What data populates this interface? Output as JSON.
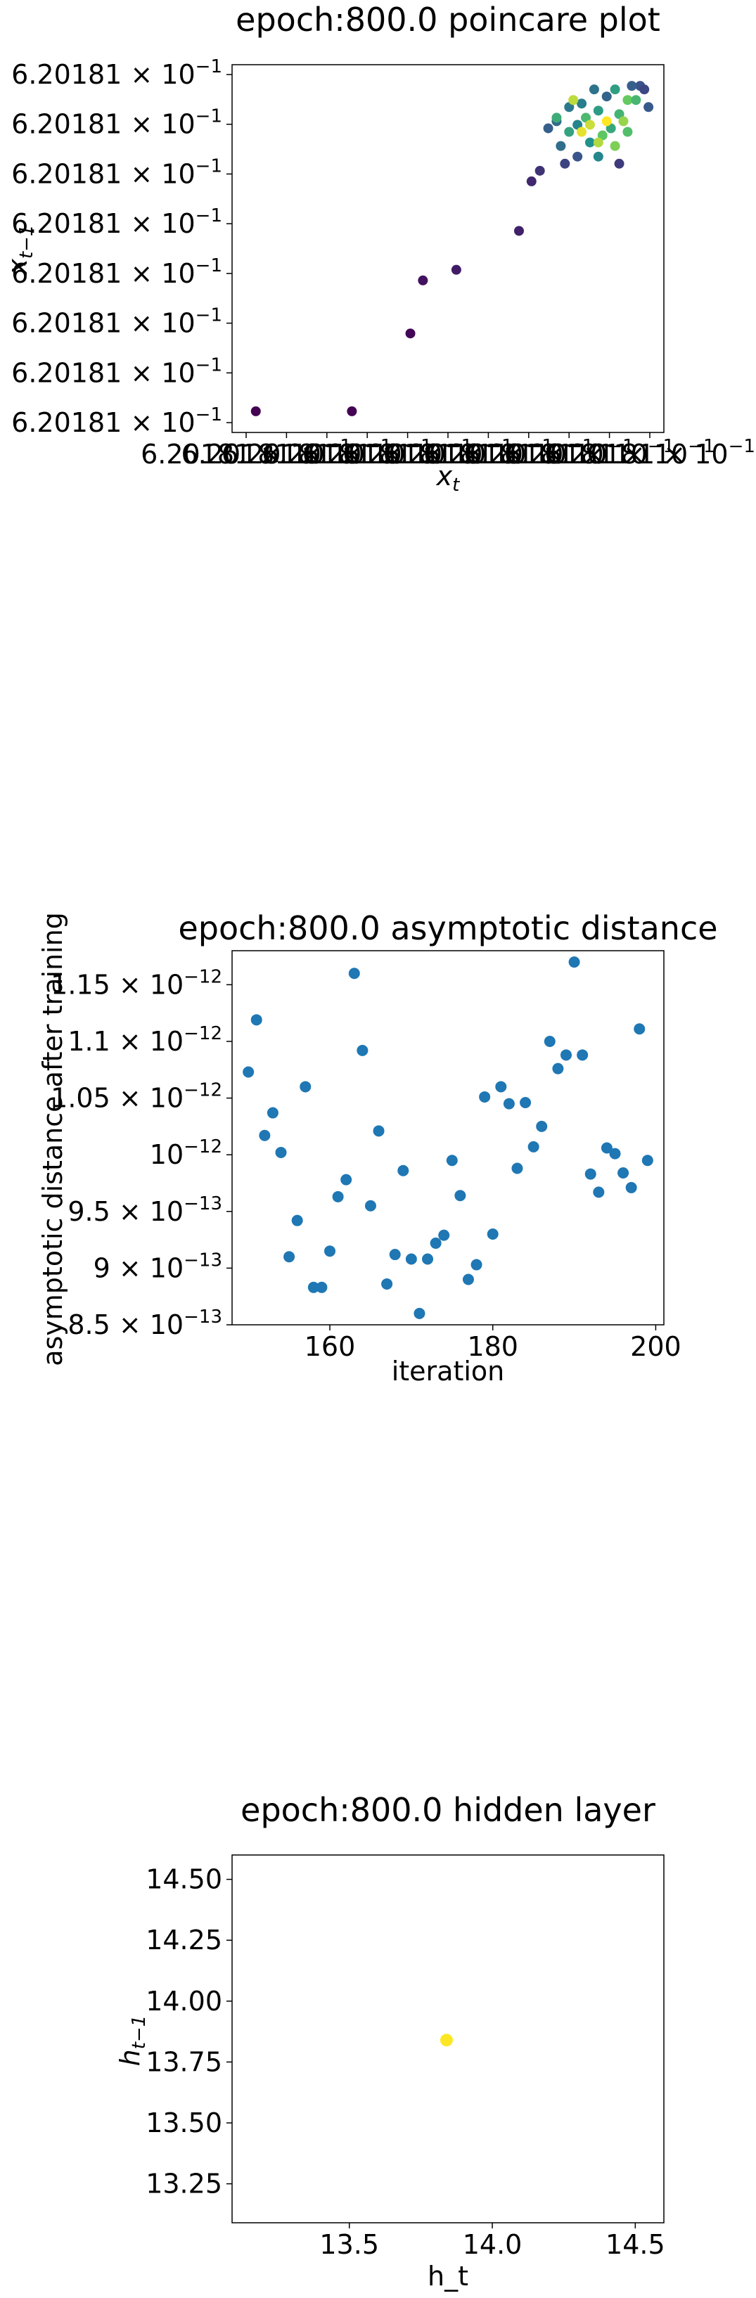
{
  "chart_data": [
    {
      "type": "scatter",
      "title": "epoch:800.0 poincare plot",
      "xlabel": "x_t",
      "ylabel": "x_{t-1}",
      "x_tick_labels": [
        "6.20181 × 10^-1",
        "6.20181 × 10^-1",
        "6.20181 × 10^-1",
        "6.20181 × 10^-1",
        "6.20181 × 10^-1",
        "6.20181 × 10^-1",
        "6.20181 × 10^-1",
        "6.20181 × 10^-1",
        "6.20181 × 10^-1",
        "6.20181 × 10^-1",
        "6.20181 × 10^-1"
      ],
      "y_tick_labels": [
        "6.20181 × 10^-1",
        "6.20181 × 10^-1",
        "6.20181 × 10^-1",
        "6.20181 × 10^-1",
        "6.20181 × 10^-1",
        "6.20181 × 10^-1",
        "6.20181 × 10^-1",
        "6.20181 × 10^-1"
      ],
      "xlim": [
        0,
        1
      ],
      "ylim": [
        0,
        1
      ],
      "grid": false,
      "colormap": "viridis",
      "points": [
        {
          "x": 0.04,
          "y": 0.04,
          "c": 0.0
        },
        {
          "x": 0.27,
          "y": 0.04,
          "c": 0.0
        },
        {
          "x": 0.41,
          "y": 0.26,
          "c": 0.02
        },
        {
          "x": 0.44,
          "y": 0.41,
          "c": 0.05
        },
        {
          "x": 0.52,
          "y": 0.44,
          "c": 0.08
        },
        {
          "x": 0.67,
          "y": 0.55,
          "c": 0.1
        },
        {
          "x": 0.7,
          "y": 0.69,
          "c": 0.12
        },
        {
          "x": 0.72,
          "y": 0.72,
          "c": 0.15
        },
        {
          "x": 0.78,
          "y": 0.74,
          "c": 0.2
        },
        {
          "x": 0.74,
          "y": 0.84,
          "c": 0.3
        },
        {
          "x": 0.76,
          "y": 0.86,
          "c": 0.35
        },
        {
          "x": 0.79,
          "y": 0.9,
          "c": 0.4
        },
        {
          "x": 0.81,
          "y": 0.85,
          "c": 0.45
        },
        {
          "x": 0.84,
          "y": 0.8,
          "c": 0.5
        },
        {
          "x": 0.86,
          "y": 0.89,
          "c": 0.55
        },
        {
          "x": 0.89,
          "y": 0.84,
          "c": 0.6
        },
        {
          "x": 0.91,
          "y": 0.88,
          "c": 0.65
        },
        {
          "x": 0.93,
          "y": 0.83,
          "c": 0.7
        },
        {
          "x": 0.96,
          "y": 0.96,
          "c": 0.25
        },
        {
          "x": 0.97,
          "y": 0.95,
          "c": 0.22
        },
        {
          "x": 0.98,
          "y": 0.9,
          "c": 0.28
        },
        {
          "x": 0.94,
          "y": 0.96,
          "c": 0.3
        },
        {
          "x": 0.88,
          "y": 0.93,
          "c": 0.32
        },
        {
          "x": 0.85,
          "y": 0.95,
          "c": 0.38
        },
        {
          "x": 0.82,
          "y": 0.91,
          "c": 0.42
        },
        {
          "x": 0.79,
          "y": 0.83,
          "c": 0.58
        },
        {
          "x": 0.76,
          "y": 0.87,
          "c": 0.62
        },
        {
          "x": 0.83,
          "y": 0.87,
          "c": 0.68
        },
        {
          "x": 0.87,
          "y": 0.82,
          "c": 0.74
        },
        {
          "x": 0.9,
          "y": 0.79,
          "c": 0.8
        },
        {
          "x": 0.92,
          "y": 0.86,
          "c": 0.84
        },
        {
          "x": 0.86,
          "y": 0.8,
          "c": 0.88
        },
        {
          "x": 0.84,
          "y": 0.85,
          "c": 0.92
        },
        {
          "x": 0.82,
          "y": 0.83,
          "c": 0.96
        },
        {
          "x": 0.88,
          "y": 0.86,
          "c": 1.0
        },
        {
          "x": 0.8,
          "y": 0.92,
          "c": 0.9
        },
        {
          "x": 0.93,
          "y": 0.92,
          "c": 0.76
        },
        {
          "x": 0.95,
          "y": 0.92,
          "c": 0.66
        },
        {
          "x": 0.9,
          "y": 0.95,
          "c": 0.56
        },
        {
          "x": 0.86,
          "y": 0.76,
          "c": 0.46
        },
        {
          "x": 0.77,
          "y": 0.79,
          "c": 0.36
        },
        {
          "x": 0.81,
          "y": 0.76,
          "c": 0.26
        },
        {
          "x": 0.91,
          "y": 0.74,
          "c": 0.18
        }
      ]
    },
    {
      "type": "scatter",
      "title": "epoch:800.0 asymptotic distance",
      "xlabel": "iteration",
      "ylabel": "asymptotic distance after training",
      "xlim": [
        148,
        201
      ],
      "ylim": [
        8.5e-13,
        1.18e-12
      ],
      "x_ticks": [
        160,
        180,
        200
      ],
      "x_tick_labels": [
        "160",
        "180",
        "200"
      ],
      "y_ticks": [
        8.5e-13,
        9e-13,
        9.5e-13,
        1e-12,
        1.05e-12,
        1.1e-12,
        1.15e-12
      ],
      "y_tick_labels": [
        "8.5 × 10^-13",
        "9 × 10^-13",
        "9.5 × 10^-13",
        "10^-12",
        "1.05 × 10^-12",
        "1.1 × 10^-12",
        "1.15 × 10^-12"
      ],
      "color": "#1f77b4",
      "grid": false,
      "points": [
        {
          "x": 150,
          "y": 1.073e-12
        },
        {
          "x": 151,
          "y": 1.119e-12
        },
        {
          "x": 152,
          "y": 1.017e-12
        },
        {
          "x": 153,
          "y": 1.037e-12
        },
        {
          "x": 154,
          "y": 1.002e-12
        },
        {
          "x": 155,
          "y": 9.1e-13
        },
        {
          "x": 156,
          "y": 9.42e-13
        },
        {
          "x": 157,
          "y": 1.06e-12
        },
        {
          "x": 158,
          "y": 8.83e-13
        },
        {
          "x": 159,
          "y": 8.83e-13
        },
        {
          "x": 160,
          "y": 9.15e-13
        },
        {
          "x": 161,
          "y": 9.63e-13
        },
        {
          "x": 162,
          "y": 9.78e-13
        },
        {
          "x": 163,
          "y": 1.16e-12
        },
        {
          "x": 164,
          "y": 1.092e-12
        },
        {
          "x": 165,
          "y": 9.55e-13
        },
        {
          "x": 166,
          "y": 1.021e-12
        },
        {
          "x": 167,
          "y": 8.86e-13
        },
        {
          "x": 168,
          "y": 9.12e-13
        },
        {
          "x": 169,
          "y": 9.86e-13
        },
        {
          "x": 170,
          "y": 9.08e-13
        },
        {
          "x": 171,
          "y": 8.6e-13
        },
        {
          "x": 172,
          "y": 9.08e-13
        },
        {
          "x": 173,
          "y": 9.22e-13
        },
        {
          "x": 174,
          "y": 9.29e-13
        },
        {
          "x": 175,
          "y": 9.95e-13
        },
        {
          "x": 176,
          "y": 9.64e-13
        },
        {
          "x": 177,
          "y": 8.9e-13
        },
        {
          "x": 178,
          "y": 9.03e-13
        },
        {
          "x": 179,
          "y": 1.051e-12
        },
        {
          "x": 180,
          "y": 9.3e-13
        },
        {
          "x": 181,
          "y": 1.06e-12
        },
        {
          "x": 182,
          "y": 1.045e-12
        },
        {
          "x": 183,
          "y": 9.88e-13
        },
        {
          "x": 184,
          "y": 1.046e-12
        },
        {
          "x": 185,
          "y": 1.007e-12
        },
        {
          "x": 186,
          "y": 1.025e-12
        },
        {
          "x": 187,
          "y": 1.1e-12
        },
        {
          "x": 188,
          "y": 1.076e-12
        },
        {
          "x": 189,
          "y": 1.088e-12
        },
        {
          "x": 190,
          "y": 1.17e-12
        },
        {
          "x": 191,
          "y": 1.088e-12
        },
        {
          "x": 192,
          "y": 9.83e-13
        },
        {
          "x": 193,
          "y": 9.67e-13
        },
        {
          "x": 194,
          "y": 1.006e-12
        },
        {
          "x": 195,
          "y": 1.001e-12
        },
        {
          "x": 196,
          "y": 9.84e-13
        },
        {
          "x": 197,
          "y": 9.71e-13
        },
        {
          "x": 198,
          "y": 1.111e-12
        },
        {
          "x": 199,
          "y": 9.95e-13
        }
      ]
    },
    {
      "type": "scatter",
      "title": "epoch:800.0 hidden layer",
      "xlabel": "h_t",
      "ylabel": "h_{t-1}",
      "xlim": [
        13.09,
        14.6
      ],
      "ylim": [
        13.09,
        14.6
      ],
      "x_ticks": [
        13.5,
        14.0,
        14.5
      ],
      "x_tick_labels": [
        "13.5",
        "14.0",
        "14.5"
      ],
      "y_ticks": [
        13.25,
        13.5,
        13.75,
        14.0,
        14.25,
        14.5
      ],
      "y_tick_labels": [
        "13.25",
        "13.50",
        "13.75",
        "14.00",
        "14.25",
        "14.50"
      ],
      "color": "#fde725",
      "grid": false,
      "points": [
        {
          "x": 13.84,
          "y": 13.84
        }
      ]
    }
  ]
}
